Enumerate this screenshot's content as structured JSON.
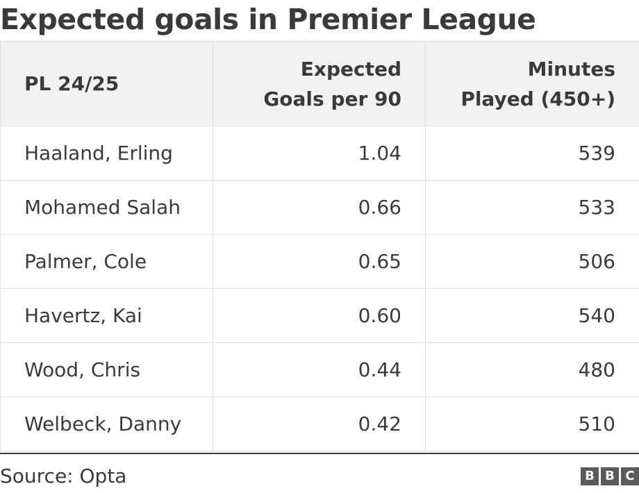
{
  "chart_data": {
    "type": "table",
    "title": "Expected goals in Premier League",
    "columns": [
      "PL 24/25",
      "Expected Goals per 90",
      "Minutes Played (450+)"
    ],
    "rows": [
      {
        "player": "Haaland, Erling",
        "xg_per_90": "1.04",
        "minutes": "539"
      },
      {
        "player": "Mohamed Salah",
        "xg_per_90": "0.66",
        "minutes": "533"
      },
      {
        "player": "Palmer, Cole",
        "xg_per_90": "0.65",
        "minutes": "506"
      },
      {
        "player": "Havertz, Kai",
        "xg_per_90": "0.60",
        "minutes": "540"
      },
      {
        "player": "Wood, Chris",
        "xg_per_90": "0.44",
        "minutes": "480"
      },
      {
        "player": "Welbeck, Danny",
        "xg_per_90": "0.42",
        "minutes": "510"
      }
    ],
    "source": "Source: Opta"
  },
  "logo": {
    "letters": [
      "B",
      "B",
      "C"
    ],
    "icon": "bbc-logo"
  },
  "colors": {
    "text": "#3a3a3a",
    "header_bg": "#f2f2f2",
    "grid": "#e0e0e0",
    "logo_bg": "#5a5a5a"
  }
}
